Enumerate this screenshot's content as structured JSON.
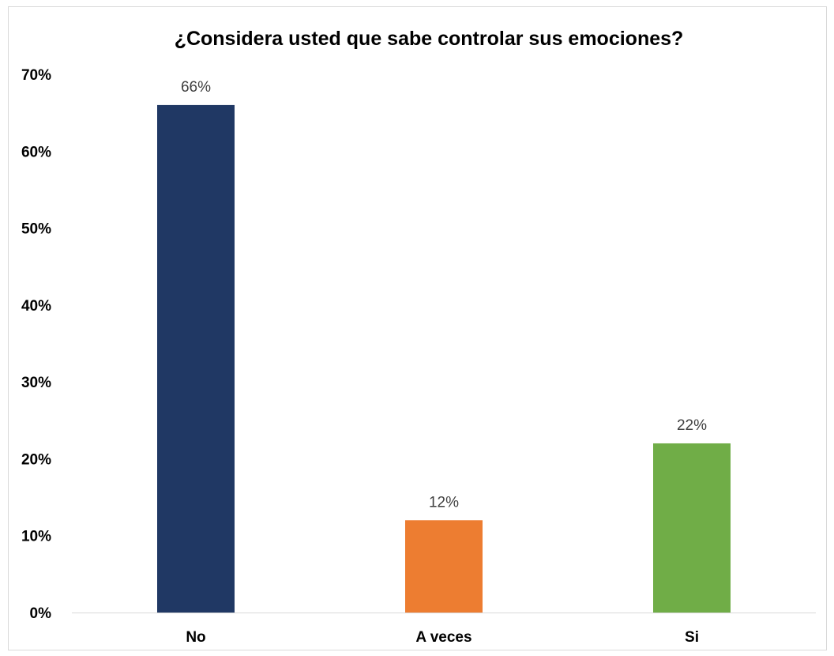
{
  "chart_data": {
    "type": "bar",
    "title": "¿Considera usted que sabe controlar sus emociones?",
    "categories": [
      "No",
      "A veces",
      "Si"
    ],
    "values": [
      66,
      12,
      22
    ],
    "data_labels": [
      "66%",
      "12%",
      "22%"
    ],
    "colors": [
      "#203864",
      "#ED7D31",
      "#70AD47"
    ],
    "ylim": [
      0,
      70
    ],
    "yticks": [
      0,
      10,
      20,
      30,
      40,
      50,
      60,
      70
    ],
    "ytick_labels": [
      "0%",
      "10%",
      "20%",
      "30%",
      "40%",
      "50%",
      "60%",
      "70%"
    ],
    "grid": false,
    "legend": "none"
  }
}
